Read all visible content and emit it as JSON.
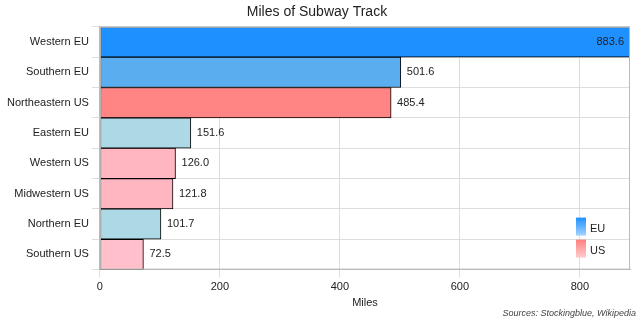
{
  "chart_data": {
    "type": "bar",
    "orientation": "horizontal",
    "title": "Miles of Subway Track",
    "x_label": "Miles",
    "annotations": [
      "Sources: Stockingblue, Wikipedia"
    ],
    "categories": [
      "Western EU",
      "Southern EU",
      "Northeastern US",
      "Eastern EU",
      "Western US",
      "Midwestern US",
      "Northern EU",
      "Southern US"
    ],
    "series": [
      {
        "name": "EU",
        "color": "#1e90ff",
        "colors": [
          "#1e90ff",
          "#5aaef0",
          null,
          "#add8e6",
          null,
          null,
          "#add8e6",
          null
        ],
        "values": [
          883.6,
          501.6,
          null,
          151.6,
          null,
          null,
          101.7,
          null
        ],
        "value_labels": [
          "883.6",
          "501.6",
          null,
          "151.6",
          null,
          null,
          "101.7",
          null
        ]
      },
      {
        "name": "US",
        "color": "#ff7f7f",
        "colors": [
          null,
          null,
          "#ff8585",
          null,
          "#ffb6c1",
          "#ffb6c1",
          null,
          "#ffc0cb"
        ],
        "values": [
          null,
          null,
          485.4,
          null,
          126.0,
          121.8,
          null,
          72.5
        ],
        "value_labels": [
          null,
          null,
          "485.4",
          null,
          "126.0",
          "121.8",
          null,
          "72.5"
        ]
      }
    ],
    "xlim": [
      0,
      883.6
    ],
    "xticks": [
      0,
      200,
      400,
      600,
      800
    ],
    "grid": true,
    "data_labels": true,
    "legend": "lower right"
  }
}
